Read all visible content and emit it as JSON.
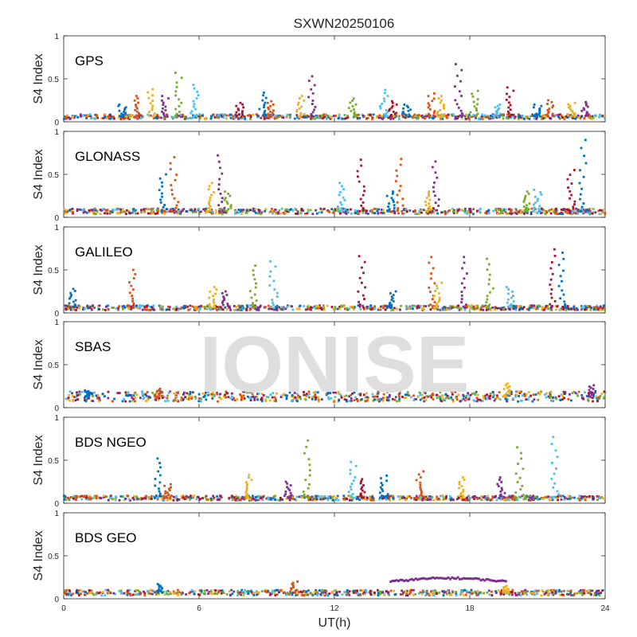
{
  "chart_data": {
    "type": "scatter",
    "title": "SXWN20250106",
    "xlabel": "UT(h)",
    "xlim": [
      0,
      24
    ],
    "xticks": [
      0,
      6,
      12,
      18,
      24
    ],
    "watermark": "IONISE",
    "series_colors": [
      "#0072BD",
      "#D95319",
      "#EDB120",
      "#7E2F8E",
      "#77AC30",
      "#4DBEEE",
      "#A2142F"
    ],
    "panels": [
      {
        "label": "GPS",
        "ylabel": "S4 Index",
        "ylim": [
          0,
          1
        ],
        "yticks": [
          0,
          0.5,
          1
        ],
        "baseline": 0.06,
        "spikes": [
          [
            2.6,
            0.2
          ],
          [
            3.2,
            0.3
          ],
          [
            3.9,
            0.38
          ],
          [
            4.5,
            0.3
          ],
          [
            5.1,
            0.57
          ],
          [
            5.8,
            0.43
          ],
          [
            7.8,
            0.22
          ],
          [
            8.8,
            0.34
          ],
          [
            9.2,
            0.24
          ],
          [
            10.5,
            0.3
          ],
          [
            11.0,
            0.53
          ],
          [
            12.8,
            0.27
          ],
          [
            14.2,
            0.37
          ],
          [
            14.6,
            0.24
          ],
          [
            15.2,
            0.2
          ],
          [
            16.3,
            0.33
          ],
          [
            16.7,
            0.3
          ],
          [
            17.5,
            0.67
          ],
          [
            18.2,
            0.36
          ],
          [
            19.2,
            0.2
          ],
          [
            19.8,
            0.4
          ],
          [
            21.0,
            0.2
          ],
          [
            21.6,
            0.25
          ],
          [
            22.5,
            0.22
          ],
          [
            23.1,
            0.23
          ]
        ]
      },
      {
        "label": "GLONASS",
        "ylabel": "S4 Index",
        "ylim": [
          0,
          1
        ],
        "yticks": [
          0,
          0.5,
          1
        ],
        "baseline": 0.07,
        "spikes": [
          [
            4.4,
            0.5
          ],
          [
            4.9,
            0.7
          ],
          [
            6.5,
            0.4
          ],
          [
            7.0,
            0.72
          ],
          [
            7.3,
            0.3
          ],
          [
            12.3,
            0.4
          ],
          [
            13.2,
            0.67
          ],
          [
            14.5,
            0.3
          ],
          [
            14.9,
            0.68
          ],
          [
            16.2,
            0.3
          ],
          [
            16.5,
            0.65
          ],
          [
            20.5,
            0.3
          ],
          [
            21.0,
            0.32
          ],
          [
            22.5,
            0.55
          ],
          [
            23.0,
            0.9
          ]
        ]
      },
      {
        "label": "GALILEO",
        "ylabel": "S4 Index",
        "ylim": [
          0,
          1
        ],
        "yticks": [
          0,
          0.5,
          1
        ],
        "baseline": 0.06,
        "spikes": [
          [
            0.4,
            0.28
          ],
          [
            3.0,
            0.5
          ],
          [
            6.6,
            0.3
          ],
          [
            7.2,
            0.25
          ],
          [
            8.4,
            0.55
          ],
          [
            9.3,
            0.6
          ],
          [
            13.2,
            0.66
          ],
          [
            14.6,
            0.25
          ],
          [
            16.3,
            0.65
          ],
          [
            16.6,
            0.35
          ],
          [
            17.8,
            0.65
          ],
          [
            18.9,
            0.63
          ],
          [
            19.8,
            0.3
          ],
          [
            21.7,
            0.74
          ],
          [
            22.1,
            0.7
          ]
        ]
      },
      {
        "label": "SBAS",
        "ylabel": "S4 Index",
        "ylim": [
          0,
          1
        ],
        "yticks": [
          0,
          0.5,
          1
        ],
        "baseline": 0.13,
        "spikes": [
          [
            1.1,
            0.2
          ],
          [
            4.2,
            0.22
          ],
          [
            19.6,
            0.28
          ],
          [
            23.4,
            0.26
          ]
        ]
      },
      {
        "label": "BDS NGEO",
        "ylabel": "S4 Index",
        "ylim": [
          0,
          1
        ],
        "yticks": [
          0,
          0.5,
          1
        ],
        "baseline": 0.06,
        "spikes": [
          [
            4.2,
            0.52
          ],
          [
            4.6,
            0.22
          ],
          [
            8.2,
            0.33
          ],
          [
            10.0,
            0.25
          ],
          [
            10.8,
            0.73
          ],
          [
            12.8,
            0.48
          ],
          [
            13.3,
            0.28
          ],
          [
            14.2,
            0.32
          ],
          [
            15.8,
            0.37
          ],
          [
            17.6,
            0.3
          ],
          [
            19.4,
            0.3
          ],
          [
            20.2,
            0.65
          ],
          [
            21.8,
            0.77
          ]
        ]
      },
      {
        "label": "BDS GEO",
        "ylabel": "S4 Index",
        "ylim": [
          0,
          1
        ],
        "yticks": [
          0,
          0.5,
          1
        ],
        "baseline": 0.07,
        "spikes": [
          [
            4.2,
            0.17
          ],
          [
            10.2,
            0.2
          ],
          [
            19.6,
            0.15
          ]
        ],
        "arc": {
          "x0": 14.5,
          "x1": 19.6,
          "y0": 0.2,
          "peak": 0.24
        }
      }
    ]
  }
}
